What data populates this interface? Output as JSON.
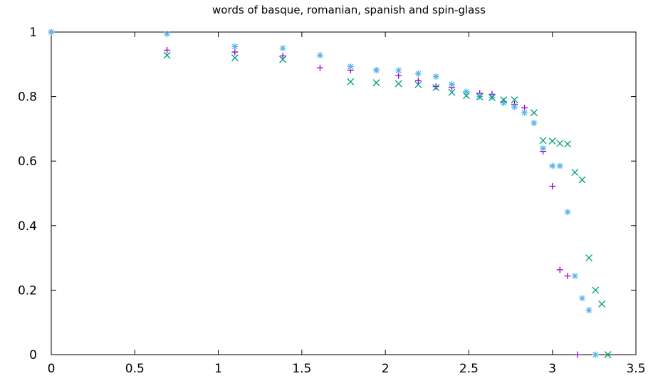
{
  "chart_data": {
    "type": "scatter",
    "title": "words of basque, romanian, spanish and spin-glass",
    "xlabel": "",
    "ylabel": "",
    "xlim": [
      0,
      3.5
    ],
    "ylim": [
      0,
      1
    ],
    "xticks": [
      0,
      0.5,
      1,
      1.5,
      2,
      2.5,
      3,
      3.5
    ],
    "xtick_labels": [
      "0",
      "0.5",
      "1",
      "1.5",
      "2",
      "2.5",
      "3",
      "3.5"
    ],
    "yticks": [
      0,
      0.2,
      0.4,
      0.6,
      0.8,
      1
    ],
    "ytick_labels": [
      "0",
      "0.2",
      "0.4",
      "0.6",
      "0.8",
      "1"
    ],
    "grid": false,
    "legend": "none",
    "series": [
      {
        "marker": "plus",
        "color": "#9400d3",
        "points": [
          [
            0.0,
            1.0
          ],
          [
            0.693,
            0.944
          ],
          [
            1.099,
            0.938
          ],
          [
            1.386,
            0.926
          ],
          [
            1.609,
            0.889
          ],
          [
            1.792,
            0.882
          ],
          [
            1.946,
            0.882
          ],
          [
            2.079,
            0.865
          ],
          [
            2.197,
            0.849
          ],
          [
            2.303,
            0.831
          ],
          [
            2.398,
            0.828
          ],
          [
            2.565,
            0.81
          ],
          [
            2.639,
            0.807
          ],
          [
            2.708,
            0.784
          ],
          [
            2.773,
            0.776
          ],
          [
            2.833,
            0.765
          ],
          [
            2.944,
            0.63
          ],
          [
            3.0,
            0.522
          ],
          [
            3.045,
            0.263
          ],
          [
            3.091,
            0.244
          ],
          [
            3.15,
            0.0
          ]
        ]
      },
      {
        "marker": "star",
        "color": "#56b4e9",
        "points": [
          [
            0.0,
            1.0
          ],
          [
            0.693,
            0.994
          ],
          [
            1.099,
            0.955
          ],
          [
            1.386,
            0.95
          ],
          [
            1.609,
            0.928
          ],
          [
            1.792,
            0.893
          ],
          [
            1.946,
            0.882
          ],
          [
            2.079,
            0.881
          ],
          [
            2.197,
            0.871
          ],
          [
            2.303,
            0.862
          ],
          [
            2.398,
            0.838
          ],
          [
            2.485,
            0.815
          ],
          [
            2.565,
            0.8
          ],
          [
            2.639,
            0.798
          ],
          [
            2.708,
            0.78
          ],
          [
            2.773,
            0.768
          ],
          [
            2.833,
            0.75
          ],
          [
            2.89,
            0.718
          ],
          [
            2.944,
            0.64
          ],
          [
            3.0,
            0.585
          ],
          [
            3.045,
            0.585
          ],
          [
            3.091,
            0.442
          ],
          [
            3.135,
            0.244
          ],
          [
            3.178,
            0.175
          ],
          [
            3.219,
            0.138
          ],
          [
            3.258,
            0.0
          ]
        ]
      },
      {
        "marker": "cross",
        "color": "#009e73",
        "points": [
          [
            0.693,
            0.928
          ],
          [
            1.099,
            0.92
          ],
          [
            1.386,
            0.915
          ],
          [
            1.792,
            0.846
          ],
          [
            1.946,
            0.843
          ],
          [
            2.079,
            0.84
          ],
          [
            2.197,
            0.837
          ],
          [
            2.303,
            0.828
          ],
          [
            2.398,
            0.813
          ],
          [
            2.485,
            0.803
          ],
          [
            2.565,
            0.799
          ],
          [
            2.639,
            0.797
          ],
          [
            2.708,
            0.79
          ],
          [
            2.773,
            0.79
          ],
          [
            2.89,
            0.75
          ],
          [
            2.944,
            0.664
          ],
          [
            3.0,
            0.662
          ],
          [
            3.045,
            0.655
          ],
          [
            3.091,
            0.653
          ],
          [
            3.135,
            0.565
          ],
          [
            3.178,
            0.542
          ],
          [
            3.219,
            0.3
          ],
          [
            3.258,
            0.2
          ],
          [
            3.296,
            0.157
          ],
          [
            3.332,
            0.0
          ]
        ]
      }
    ]
  }
}
